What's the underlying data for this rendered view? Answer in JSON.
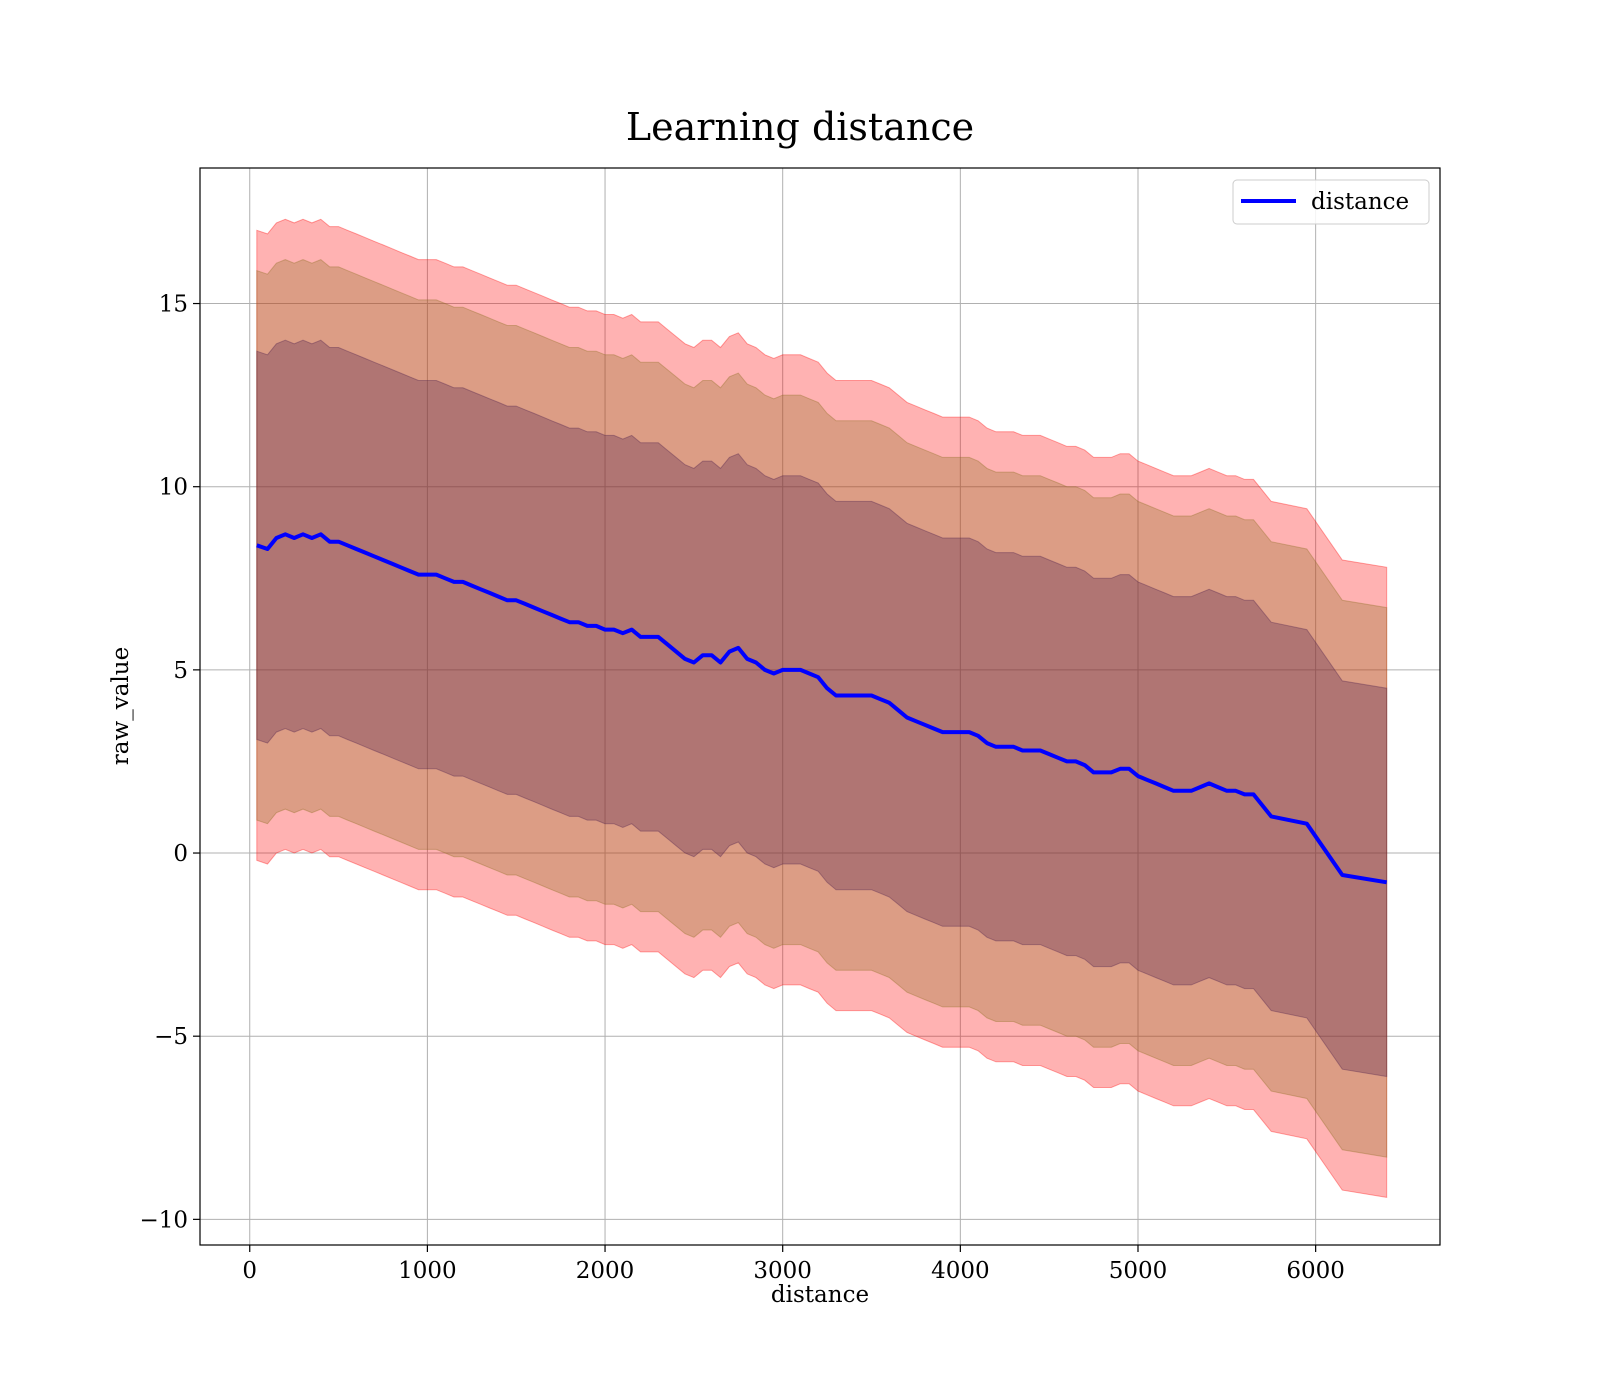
{
  "chart_data": {
    "type": "area",
    "title": "Learning distance",
    "xlabel": "distance",
    "ylabel": "raw_value",
    "xlim": [
      -280,
      6700
    ],
    "ylim": [
      -10.7,
      18.7
    ],
    "xticks": [
      0,
      1000,
      2000,
      3000,
      4000,
      5000,
      6000
    ],
    "xtick_labels": [
      "0",
      "1000",
      "2000",
      "3000",
      "4000",
      "5000",
      "6000"
    ],
    "yticks": [
      -10,
      -5,
      0,
      5,
      10,
      15
    ],
    "ytick_labels": [
      "−10",
      "−5",
      "0",
      "5",
      "10",
      "15"
    ],
    "grid": true,
    "legend": {
      "position": "top-right",
      "entries": [
        "distance"
      ]
    },
    "colors": {
      "line": "#0000ff",
      "band": "#ff0000",
      "band_outer_mid": "#8c6d1f",
      "band_inner": "#4b1c4b"
    },
    "series": [
      {
        "name": "distance",
        "x": [
          40,
          100,
          150,
          200,
          250,
          300,
          350,
          400,
          450,
          500,
          550,
          600,
          650,
          700,
          750,
          800,
          850,
          900,
          950,
          1000,
          1050,
          1100,
          1150,
          1200,
          1250,
          1300,
          1350,
          1400,
          1450,
          1500,
          1550,
          1600,
          1650,
          1700,
          1750,
          1800,
          1850,
          1900,
          1950,
          2000,
          2050,
          2100,
          2150,
          2200,
          2250,
          2300,
          2350,
          2400,
          2450,
          2500,
          2550,
          2600,
          2650,
          2700,
          2750,
          2800,
          2850,
          2900,
          2950,
          3000,
          3050,
          3100,
          3150,
          3200,
          3250,
          3300,
          3350,
          3400,
          3450,
          3500,
          3550,
          3600,
          3650,
          3700,
          3750,
          3800,
          3850,
          3900,
          3950,
          4000,
          4050,
          4100,
          4150,
          4200,
          4250,
          4300,
          4350,
          4400,
          4450,
          4500,
          4550,
          4600,
          4650,
          4700,
          4750,
          4800,
          4850,
          4900,
          4950,
          5000,
          5050,
          5100,
          5150,
          5200,
          5250,
          5300,
          5350,
          5400,
          5450,
          5500,
          5550,
          5600,
          5650,
          5750,
          5950,
          6150,
          6400
        ],
        "y": [
          8.4,
          8.3,
          8.6,
          8.7,
          8.6,
          8.7,
          8.6,
          8.7,
          8.5,
          8.5,
          8.4,
          8.3,
          8.2,
          8.1,
          8.0,
          7.9,
          7.8,
          7.7,
          7.6,
          7.6,
          7.6,
          7.5,
          7.4,
          7.4,
          7.3,
          7.2,
          7.1,
          7.0,
          6.9,
          6.9,
          6.8,
          6.7,
          6.6,
          6.5,
          6.4,
          6.3,
          6.3,
          6.2,
          6.2,
          6.1,
          6.1,
          6.0,
          6.1,
          5.9,
          5.9,
          5.9,
          5.7,
          5.5,
          5.3,
          5.2,
          5.4,
          5.4,
          5.2,
          5.5,
          5.6,
          5.3,
          5.2,
          5.0,
          4.9,
          5.0,
          5.0,
          5.0,
          4.9,
          4.8,
          4.5,
          4.3,
          4.3,
          4.3,
          4.3,
          4.3,
          4.2,
          4.1,
          3.9,
          3.7,
          3.6,
          3.5,
          3.4,
          3.3,
          3.3,
          3.3,
          3.3,
          3.2,
          3.0,
          2.9,
          2.9,
          2.9,
          2.8,
          2.8,
          2.8,
          2.7,
          2.6,
          2.5,
          2.5,
          2.4,
          2.2,
          2.2,
          2.2,
          2.3,
          2.3,
          2.1,
          2.0,
          1.9,
          1.8,
          1.7,
          1.7,
          1.7,
          1.8,
          1.9,
          1.8,
          1.7,
          1.7,
          1.6,
          1.6,
          1.0,
          0.8,
          -0.6,
          -0.8
        ]
      }
    ],
    "bands": [
      {
        "offset_upper": 8.6,
        "offset_lower": 8.6
      },
      {
        "offset_upper": 7.5,
        "offset_lower": 7.5
      },
      {
        "offset_upper": 5.3,
        "offset_lower": 5.3
      }
    ]
  }
}
